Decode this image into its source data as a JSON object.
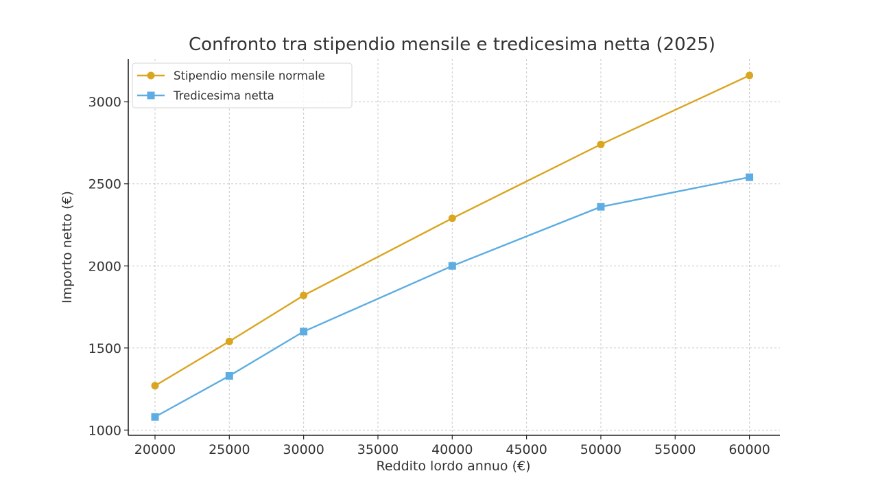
{
  "chart_data": {
    "type": "line",
    "title": "Confronto tra stipendio mensile e tredicesima netta (2025)",
    "xlabel": "Reddito lordo annuo (€)",
    "ylabel": "Importo netto (€)",
    "x": [
      20000,
      25000,
      30000,
      40000,
      50000,
      60000
    ],
    "series": [
      {
        "name": "Stipendio mensile normale",
        "color": "#DAA520",
        "marker": "circle",
        "values": [
          1270,
          1540,
          1820,
          2290,
          2740,
          3160
        ]
      },
      {
        "name": "Tredicesima netta",
        "color": "#5DADE2",
        "marker": "square",
        "values": [
          1080,
          1330,
          1600,
          2000,
          2360,
          2540
        ]
      }
    ],
    "xticks": [
      20000,
      25000,
      30000,
      35000,
      40000,
      45000,
      50000,
      55000,
      60000
    ],
    "yticks": [
      1000,
      1500,
      2000,
      2500,
      3000
    ],
    "xlim": [
      18200,
      62050
    ],
    "ylim": [
      968,
      3260
    ],
    "grid": true,
    "legend_position": "upper left"
  }
}
